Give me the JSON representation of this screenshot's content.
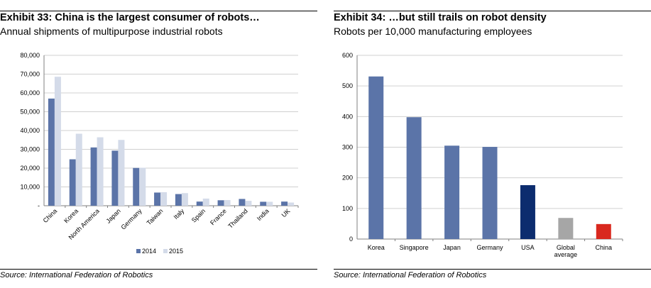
{
  "left": {
    "title": "Exhibit 33: China is the largest consumer of robots…",
    "subtitle": "Annual shipments of multipurpose industrial robots",
    "source": "Source: International Federation of Robotics",
    "chart_data": {
      "type": "bar",
      "categories": [
        "China",
        "Korea",
        "North America",
        "Japan",
        "Germany",
        "Taiwan",
        "Italy",
        "Spain",
        "France",
        "Thailand",
        "India",
        "UK"
      ],
      "series": [
        {
          "name": "2014",
          "color": "#5b74a8",
          "values": [
            57000,
            24700,
            31000,
            29300,
            20100,
            7000,
            6200,
            2200,
            2900,
            3600,
            2100,
            2200
          ]
        },
        {
          "name": "2015",
          "color": "#d4dbe9",
          "values": [
            68600,
            38300,
            36400,
            35000,
            20200,
            7200,
            6700,
            3800,
            3000,
            2600,
            2100,
            1700
          ]
        }
      ],
      "yticks": [
        "-",
        "10,000",
        "20,000",
        "30,000",
        "40,000",
        "50,000",
        "60,000",
        "70,000",
        "80,000"
      ],
      "ylim": [
        0,
        80000
      ],
      "grid": true,
      "legend": "bottom-center",
      "xlabel": "",
      "ylabel": ""
    }
  },
  "right": {
    "title": "Exhibit 34: …but still trails on robot density",
    "subtitle": "Robots per 10,000 manufacturing employees",
    "source": "Source: International Federation of Robotics",
    "chart_data": {
      "type": "bar",
      "categories": [
        "Korea",
        "Singapore",
        "Japan",
        "Germany",
        "USA",
        "Global average",
        "China"
      ],
      "category_lines": [
        [
          "Korea"
        ],
        [
          "Singapore"
        ],
        [
          "Japan"
        ],
        [
          "Germany"
        ],
        [
          "USA"
        ],
        [
          "Global",
          "average"
        ],
        [
          "China"
        ]
      ],
      "values": [
        531,
        398,
        305,
        301,
        176,
        69,
        49
      ],
      "colors": [
        "#5b74a8",
        "#5b74a8",
        "#5b74a8",
        "#5b74a8",
        "#0c2c6e",
        "#a6a6a6",
        "#d9281e"
      ],
      "yticks": [
        "0",
        "100",
        "200",
        "300",
        "400",
        "500",
        "600"
      ],
      "ylim": [
        0,
        600
      ],
      "grid": true,
      "xlabel": "",
      "ylabel": ""
    }
  }
}
